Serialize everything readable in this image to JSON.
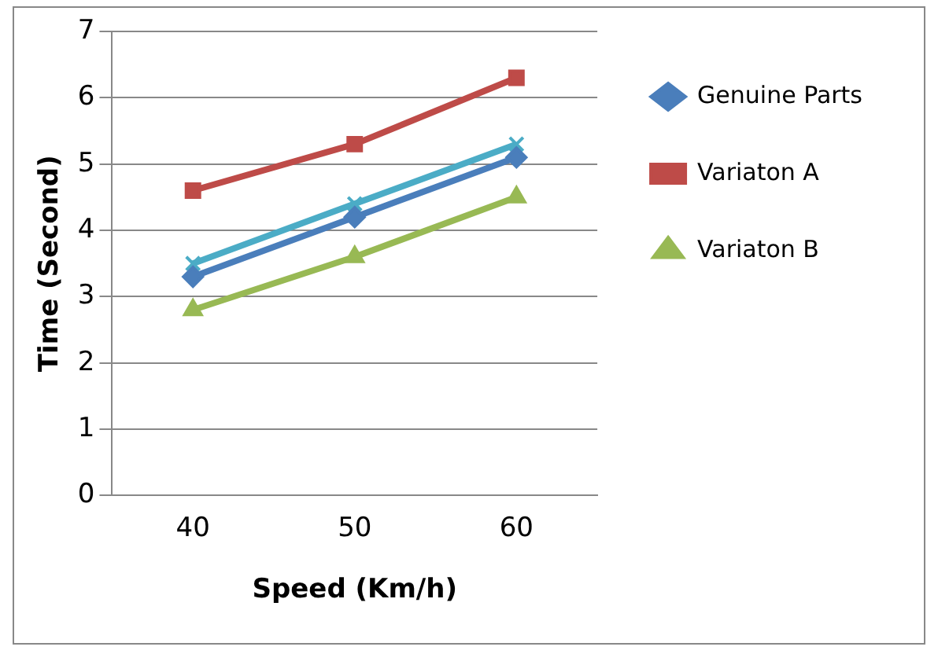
{
  "chart_data": {
    "type": "line",
    "xlabel": "Speed (Km/h)",
    "ylabel": "Time (Second)",
    "categories": [
      "40",
      "50",
      "60"
    ],
    "ylim": [
      0,
      7
    ],
    "yticks": [
      0,
      1,
      2,
      3,
      4,
      5,
      6,
      7
    ],
    "grid": "y",
    "legend": "right",
    "marker": "diamond",
    "line_style": "solid",
    "series": [
      {
        "name": "Genuine Parts",
        "color": "#4a7ebb",
        "values": [
          3.3,
          4.2,
          5.1
        ]
      },
      {
        "name": "Variaton A",
        "color": "#be4b48",
        "marker": "square",
        "values": [
          4.6,
          5.3,
          6.3
        ]
      },
      {
        "name": "Variaton B",
        "color": "#98b954",
        "marker": "triangle",
        "values": [
          2.8,
          3.6,
          4.5
        ]
      },
      {
        "color": "#4bacc6",
        "marker": "cross",
        "values": [
          3.5,
          4.4,
          5.3
        ]
      }
    ]
  }
}
